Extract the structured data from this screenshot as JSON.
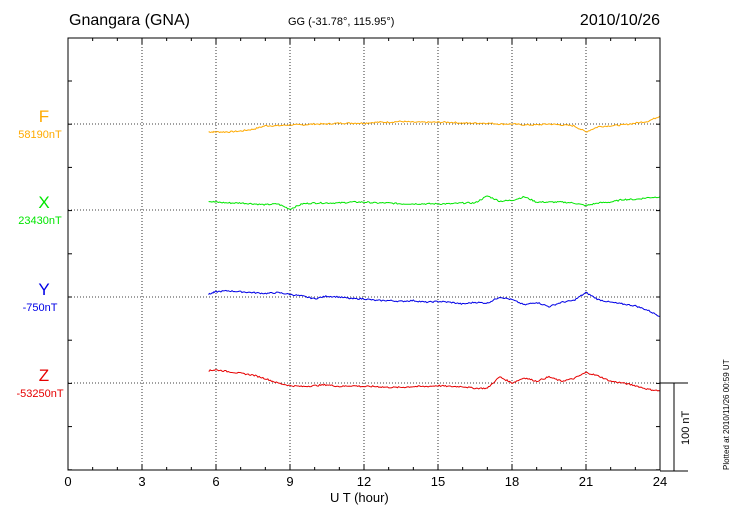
{
  "header": {
    "station": "Gnangara (GNA)",
    "coords": "GG (-31.78°, 115.95°)",
    "date": "2010/10/26"
  },
  "plotted_note": "Plotted at 2010/11/26 00:59 UT",
  "scale_label": "100 nT",
  "chart_data": {
    "type": "line",
    "title": "Gnangara (GNA)",
    "xlabel": "U T (hour)",
    "ylabel": "",
    "xlim": [
      0,
      24
    ],
    "xticks": [
      0,
      3,
      6,
      9,
      12,
      15,
      18,
      21,
      24
    ],
    "xtick_labels": [
      "0",
      "3",
      "6",
      "9",
      "12",
      "15",
      "18",
      "21",
      "24"
    ],
    "grid": true,
    "scale_nT": 100,
    "series": [
      {
        "name": "F",
        "baseline": "58190nT",
        "color": "#ffaa00",
        "x": [
          5.7,
          6.0,
          6.5,
          7.0,
          7.5,
          8.0,
          8.5,
          9.0,
          9.5,
          10.0,
          10.5,
          11.0,
          11.5,
          12.0,
          12.5,
          13.0,
          13.5,
          14.0,
          14.5,
          15.0,
          15.5,
          16.0,
          16.5,
          17.0,
          17.5,
          18.0,
          18.5,
          19.0,
          19.5,
          20.0,
          20.5,
          21.0,
          21.5,
          22.0,
          22.5,
          23.0,
          23.5,
          24.0
        ],
        "y": [
          -9,
          -9,
          -9,
          -8,
          -6,
          -2,
          -2,
          -1,
          -1,
          0,
          0,
          1,
          1,
          1,
          2,
          2,
          3,
          2,
          2,
          2,
          2,
          1,
          1,
          1,
          0,
          0,
          -1,
          -1,
          0,
          -1,
          -2,
          -9,
          -3,
          -2,
          -1,
          1,
          3,
          9
        ]
      },
      {
        "name": "X",
        "baseline": "23430nT",
        "color": "#00e600",
        "x": [
          5.7,
          6.0,
          6.5,
          7.0,
          7.5,
          8.0,
          8.5,
          9.0,
          9.5,
          10.0,
          10.5,
          11.0,
          11.5,
          12.0,
          12.5,
          13.0,
          13.5,
          14.0,
          14.5,
          15.0,
          15.5,
          16.0,
          16.5,
          17.0,
          17.5,
          18.0,
          18.5,
          19.0,
          19.5,
          20.0,
          20.5,
          21.0,
          21.5,
          22.0,
          22.5,
          23.0,
          23.5,
          24.0
        ],
        "y": [
          10,
          9,
          8,
          8,
          7,
          6,
          7,
          1,
          7,
          8,
          8,
          8,
          9,
          9,
          8,
          8,
          7,
          7,
          7,
          7,
          7,
          8,
          8,
          16,
          10,
          11,
          15,
          9,
          9,
          9,
          8,
          5,
          8,
          9,
          12,
          12,
          14,
          15
        ]
      },
      {
        "name": "Y",
        "baseline": "-750nT",
        "color": "#0000e6",
        "x": [
          5.7,
          6.0,
          6.5,
          7.0,
          7.5,
          8.0,
          8.5,
          9.0,
          9.5,
          10.0,
          10.5,
          11.0,
          11.5,
          12.0,
          12.5,
          13.0,
          13.5,
          14.0,
          14.5,
          15.0,
          15.5,
          16.0,
          16.5,
          17.0,
          17.5,
          18.0,
          18.5,
          19.0,
          19.5,
          20.0,
          20.5,
          21.0,
          21.5,
          22.0,
          22.5,
          23.0,
          23.5,
          24.0
        ],
        "y": [
          3,
          6,
          7,
          6,
          5,
          4,
          5,
          3,
          1,
          -2,
          1,
          0,
          -2,
          -2,
          -4,
          -4,
          -5,
          -4,
          -6,
          -5,
          -6,
          -8,
          -6,
          -7,
          0,
          -3,
          -9,
          -6,
          -11,
          -6,
          -4,
          5,
          -3,
          -6,
          -8,
          -10,
          -15,
          -22
        ]
      },
      {
        "name": "Z",
        "baseline": "-53250nT",
        "color": "#e60000",
        "x": [
          5.7,
          6.0,
          6.5,
          7.0,
          7.5,
          8.0,
          8.5,
          9.0,
          9.5,
          10.0,
          10.5,
          11.0,
          11.5,
          12.0,
          12.5,
          13.0,
          13.5,
          14.0,
          14.5,
          15.0,
          15.5,
          16.0,
          16.5,
          17.0,
          17.5,
          18.0,
          18.5,
          19.0,
          19.5,
          20.0,
          20.5,
          21.0,
          21.5,
          22.0,
          22.5,
          23.0,
          23.5,
          24.0
        ],
        "y": [
          14,
          15,
          13,
          11,
          9,
          5,
          0,
          -3,
          -4,
          -3,
          -2,
          -4,
          -3,
          -4,
          -4,
          -5,
          -5,
          -4,
          -4,
          -3,
          -4,
          -4,
          -6,
          -6,
          7,
          0,
          6,
          2,
          7,
          2,
          5,
          12,
          8,
          2,
          0,
          -3,
          -7,
          -9
        ]
      }
    ]
  }
}
